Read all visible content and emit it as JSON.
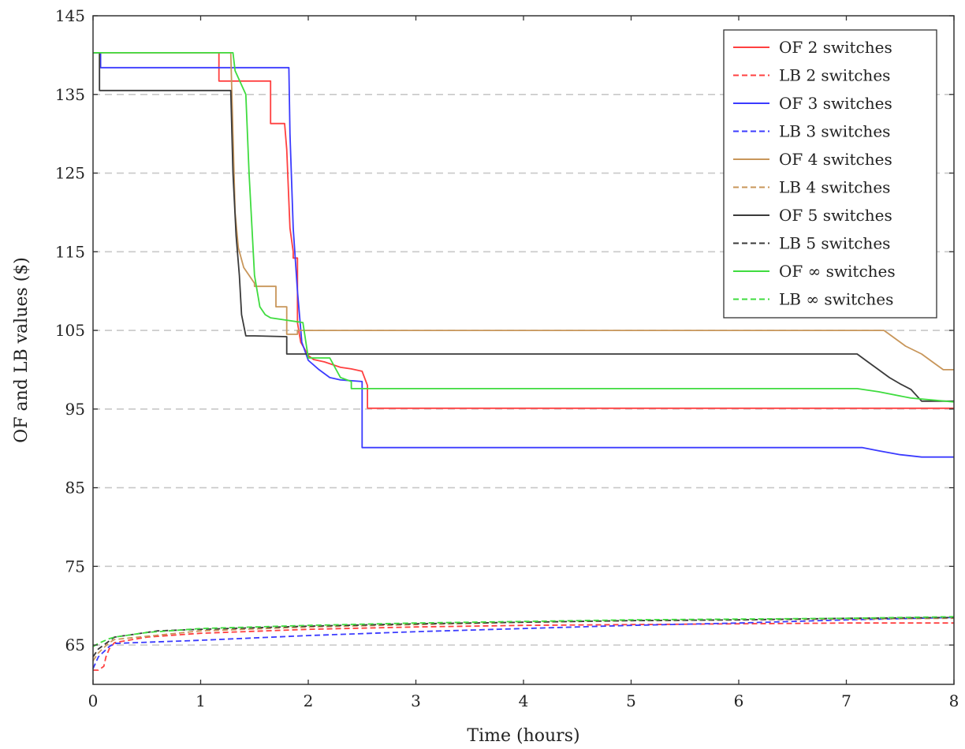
{
  "chart_data": {
    "type": "line",
    "title": "",
    "xlabel": "Time (hours)",
    "ylabel": "OF and LB values ($)",
    "xlim": [
      0,
      8
    ],
    "ylim": [
      60,
      145
    ],
    "xticks": [
      0,
      1,
      2,
      3,
      4,
      5,
      6,
      7,
      8
    ],
    "yticks": [
      65,
      75,
      85,
      95,
      105,
      115,
      125,
      135,
      145
    ],
    "xtick_labels": [
      "0",
      "1",
      "2",
      "3",
      "4",
      "5",
      "6",
      "7",
      "8"
    ],
    "ytick_labels": [
      "65",
      "75",
      "85",
      "95",
      "105",
      "115",
      "125",
      "135",
      "145"
    ],
    "grid": "horizontal dashed",
    "legend_position": "top-right",
    "series": [
      {
        "name": "OF 2 switches",
        "color": "#ff4040",
        "dash": "solid",
        "x": [
          0,
          1.17,
          1.17,
          1.65,
          1.65,
          1.78,
          1.8,
          1.83,
          1.86,
          1.86,
          1.9,
          1.9,
          1.93,
          1.96,
          2.0,
          2.05,
          2.15,
          2.3,
          2.4,
          2.5,
          2.55,
          2.55,
          3,
          5,
          7,
          8
        ],
        "y": [
          140.3,
          140.3,
          136.7,
          136.7,
          131.3,
          131.3,
          128,
          118,
          115,
          114.2,
          114.2,
          106,
          103.5,
          102.8,
          101.8,
          101.3,
          101,
          100.3,
          100.1,
          99.8,
          98,
          95.1,
          95.1,
          95.1,
          95.1,
          95.1
        ]
      },
      {
        "name": "LB 2 switches",
        "color": "#ff4040",
        "dash": "dashed",
        "x": [
          0,
          0.05,
          0.1,
          0.12,
          0.15,
          0.2,
          0.5,
          1,
          2,
          3,
          4,
          5,
          6,
          7,
          8
        ],
        "y": [
          61.8,
          61.8,
          62.3,
          63.5,
          64.5,
          65.3,
          66,
          66.5,
          67,
          67.3,
          67.5,
          67.6,
          67.7,
          67.8,
          67.8
        ]
      },
      {
        "name": "OF 3 switches",
        "color": "#3b3bff",
        "dash": "solid",
        "x": [
          0,
          0.07,
          0.07,
          0.1,
          0.1,
          1.82,
          1.83,
          1.86,
          1.9,
          1.94,
          2.0,
          2.1,
          2.2,
          2.3,
          2.5,
          2.5,
          3,
          5,
          7.15,
          7.3,
          7.5,
          7.7,
          8
        ],
        "y": [
          140.3,
          140.3,
          138.4,
          138.4,
          138.4,
          138.4,
          130,
          118,
          110,
          103.5,
          101.2,
          100,
          99,
          98.7,
          98.5,
          90.1,
          90.1,
          90.1,
          90.1,
          89.7,
          89.2,
          88.9,
          88.9
        ]
      },
      {
        "name": "LB 3 switches",
        "color": "#3b3bff",
        "dash": "dashed",
        "x": [
          0,
          0.05,
          0.15,
          0.2,
          1,
          2,
          3,
          4,
          5,
          6,
          7,
          8
        ],
        "y": [
          62,
          63.5,
          64.8,
          65.2,
          65.6,
          66.2,
          66.7,
          67.1,
          67.5,
          67.8,
          68.2,
          68.5
        ]
      },
      {
        "name": "OF 4 switches",
        "color": "#c8965a",
        "dash": "solid",
        "x": [
          0,
          1.28,
          1.3,
          1.32,
          1.35,
          1.4,
          1.5,
          1.5,
          1.7,
          1.7,
          1.8,
          1.8,
          1.9,
          1.9,
          3,
          5,
          7.35,
          7.45,
          7.55,
          7.7,
          7.8,
          7.9,
          8
        ],
        "y": [
          140.3,
          140.3,
          130,
          120,
          115.5,
          113,
          111,
          110.6,
          110.6,
          108,
          108,
          104.5,
          104.5,
          105,
          105,
          105,
          105,
          104,
          103,
          102,
          101,
          100,
          100
        ]
      },
      {
        "name": "LB 4 switches",
        "color": "#c8965a",
        "dash": "dashed",
        "x": [
          0,
          0.05,
          0.15,
          0.2,
          1,
          2,
          3,
          4,
          5,
          6,
          7,
          8
        ],
        "y": [
          63,
          64,
          65.3,
          65.7,
          66.8,
          67.3,
          67.6,
          67.9,
          68.1,
          68.2,
          68.3,
          68.4
        ]
      },
      {
        "name": "OF 5 switches",
        "color": "#3a3a3a",
        "dash": "solid",
        "x": [
          0,
          0.06,
          0.06,
          1.28,
          1.3,
          1.33,
          1.36,
          1.38,
          1.42,
          1.5,
          1.8,
          1.8,
          3,
          5,
          7.1,
          7.2,
          7.3,
          7.4,
          7.5,
          7.6,
          7.7,
          8
        ],
        "y": [
          140.3,
          140.3,
          135.5,
          135.5,
          125,
          117,
          112,
          107,
          104.3,
          104.3,
          104.2,
          102,
          102,
          102,
          102,
          101,
          100,
          99,
          98.2,
          97.5,
          96,
          96
        ]
      },
      {
        "name": "LB 5 switches",
        "color": "#3a3a3a",
        "dash": "dashed",
        "x": [
          0,
          0.05,
          0.15,
          0.2,
          0.6,
          1,
          2,
          3,
          4,
          5,
          6,
          7,
          8
        ],
        "y": [
          63.5,
          64.5,
          65.5,
          66,
          66.8,
          67,
          67.4,
          67.7,
          67.9,
          68.1,
          68.2,
          68.4,
          68.5
        ]
      },
      {
        "name": "OF ∞ switches",
        "color": "#3fdc3f",
        "dash": "solid",
        "x": [
          0,
          1.3,
          1.32,
          1.42,
          1.45,
          1.5,
          1.55,
          1.6,
          1.65,
          1.95,
          2.0,
          2.2,
          2.3,
          2.4,
          2.4,
          3,
          5,
          7.1,
          7.3,
          7.6,
          8
        ],
        "y": [
          140.3,
          140.3,
          138,
          135,
          125,
          112,
          108,
          107,
          106.6,
          106,
          101.5,
          101.5,
          99,
          98.5,
          97.6,
          97.6,
          97.6,
          97.6,
          97.2,
          96.4,
          95.9
        ]
      },
      {
        "name": "LB ∞ switches",
        "color": "#3fdc3f",
        "dash": "dashed",
        "x": [
          0,
          0.05,
          0.15,
          0.2,
          0.5,
          1,
          2,
          3,
          4,
          5,
          6,
          7,
          8
        ],
        "y": [
          64.8,
          65.2,
          65.8,
          66,
          66.6,
          67.1,
          67.5,
          67.8,
          68,
          68.2,
          68.3,
          68.4,
          68.6
        ]
      }
    ]
  }
}
